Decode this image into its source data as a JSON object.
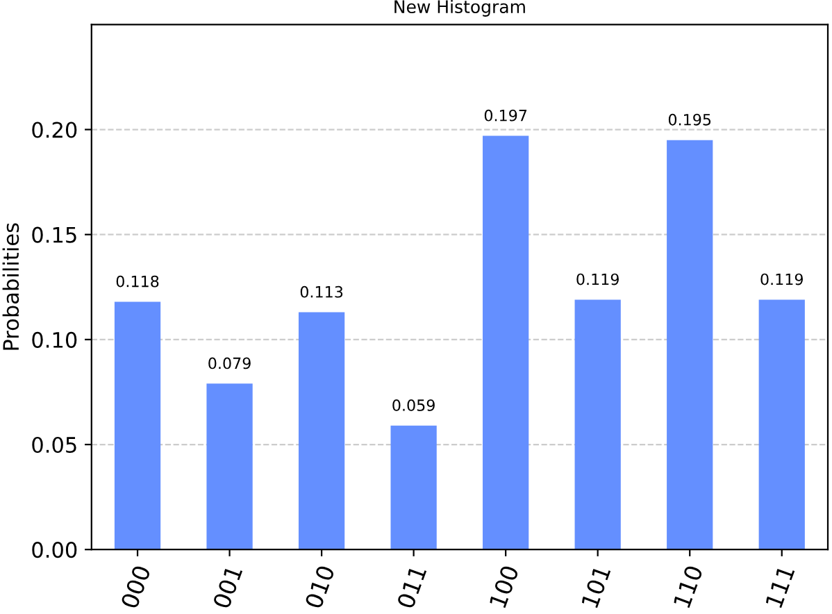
{
  "chart_data": {
    "type": "bar",
    "title": "New Histogram",
    "ylabel": "Probabilities",
    "categories": [
      "000",
      "001",
      "010",
      "011",
      "100",
      "101",
      "110",
      "111"
    ],
    "values": [
      0.118,
      0.079,
      0.113,
      0.059,
      0.197,
      0.119,
      0.195,
      0.119
    ],
    "color": "#648fff",
    "ylim": [
      0,
      0.25
    ],
    "yticks": [
      {
        "value": 0,
        "label": "0.00"
      },
      {
        "value": 0.05,
        "label": "0.05"
      },
      {
        "value": 0.1,
        "label": "0.10"
      },
      {
        "value": 0.15,
        "label": "0.15"
      },
      {
        "value": 0.2,
        "label": "0.20"
      }
    ],
    "grid": "y",
    "data_labels": true
  }
}
